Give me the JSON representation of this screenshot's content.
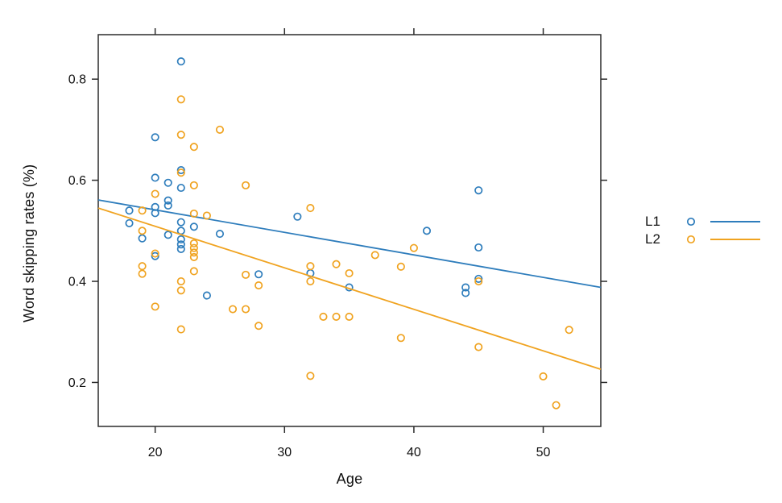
{
  "chart_data": {
    "type": "scatter",
    "title": "",
    "xlabel": "Age",
    "ylabel": "Word skipping rates (%)",
    "xlim": [
      15.6,
      54.45
    ],
    "ylim": [
      0.113,
      0.888
    ],
    "x_ticks": [
      20,
      30,
      40,
      50
    ],
    "x_tick_labels": [
      "20",
      "30",
      "40",
      "50"
    ],
    "y_ticks": [
      0.2,
      0.4,
      0.6,
      0.8
    ],
    "y_tick_labels": [
      "0.2",
      "0.4",
      "0.6",
      "0.8"
    ],
    "grid": false,
    "legend_position": "right-outside",
    "marker": "open-circle",
    "series": [
      {
        "name": "L1",
        "color": "#2e7dbc",
        "points": [
          [
            18,
            0.54
          ],
          [
            18,
            0.515
          ],
          [
            19,
            0.485
          ],
          [
            20,
            0.685
          ],
          [
            20,
            0.605
          ],
          [
            20,
            0.547
          ],
          [
            20,
            0.535
          ],
          [
            20,
            0.45
          ],
          [
            21,
            0.595
          ],
          [
            21,
            0.56
          ],
          [
            21,
            0.55
          ],
          [
            21,
            0.492
          ],
          [
            22,
            0.835
          ],
          [
            22,
            0.62
          ],
          [
            22,
            0.585
          ],
          [
            22,
            0.517
          ],
          [
            22,
            0.5
          ],
          [
            22,
            0.483
          ],
          [
            22,
            0.473
          ],
          [
            22,
            0.464
          ],
          [
            23,
            0.508
          ],
          [
            24,
            0.372
          ],
          [
            25,
            0.494
          ],
          [
            28,
            0.414
          ],
          [
            31,
            0.528
          ],
          [
            32,
            0.416
          ],
          [
            35,
            0.388
          ],
          [
            41,
            0.5
          ],
          [
            44,
            0.388
          ],
          [
            44,
            0.377
          ],
          [
            45,
            0.58
          ],
          [
            45,
            0.467
          ],
          [
            45,
            0.405
          ]
        ],
        "trend_line": {
          "x1": 15.6,
          "y1": 0.561,
          "x2": 54.45,
          "y2": 0.388
        }
      },
      {
        "name": "L2",
        "color": "#f0a320",
        "points": [
          [
            19,
            0.54
          ],
          [
            19,
            0.5
          ],
          [
            19,
            0.43
          ],
          [
            19,
            0.415
          ],
          [
            20,
            0.573
          ],
          [
            20,
            0.455
          ],
          [
            20,
            0.35
          ],
          [
            22,
            0.76
          ],
          [
            22,
            0.69
          ],
          [
            22,
            0.615
          ],
          [
            22,
            0.4
          ],
          [
            22,
            0.382
          ],
          [
            22,
            0.305
          ],
          [
            23,
            0.666
          ],
          [
            23,
            0.59
          ],
          [
            23,
            0.534
          ],
          [
            23,
            0.475
          ],
          [
            23,
            0.466
          ],
          [
            23,
            0.457
          ],
          [
            23,
            0.448
          ],
          [
            23,
            0.42
          ],
          [
            24,
            0.53
          ],
          [
            25,
            0.7
          ],
          [
            26,
            0.345
          ],
          [
            27,
            0.59
          ],
          [
            27,
            0.413
          ],
          [
            27,
            0.345
          ],
          [
            28,
            0.392
          ],
          [
            28,
            0.312
          ],
          [
            32,
            0.545
          ],
          [
            32,
            0.43
          ],
          [
            32,
            0.4
          ],
          [
            32,
            0.213
          ],
          [
            33,
            0.33
          ],
          [
            34,
            0.434
          ],
          [
            34,
            0.33
          ],
          [
            35,
            0.416
          ],
          [
            35,
            0.33
          ],
          [
            37,
            0.452
          ],
          [
            39,
            0.429
          ],
          [
            39,
            0.288
          ],
          [
            40,
            0.466
          ],
          [
            45,
            0.4
          ],
          [
            45,
            0.27
          ],
          [
            50,
            0.212
          ],
          [
            51,
            0.155
          ],
          [
            52,
            0.304
          ]
        ],
        "trend_line": {
          "x1": 15.6,
          "y1": 0.545,
          "x2": 54.45,
          "y2": 0.226
        }
      }
    ]
  },
  "colors": {
    "axis": "#2b2b2b",
    "text": "#111111",
    "background": "#ffffff"
  }
}
